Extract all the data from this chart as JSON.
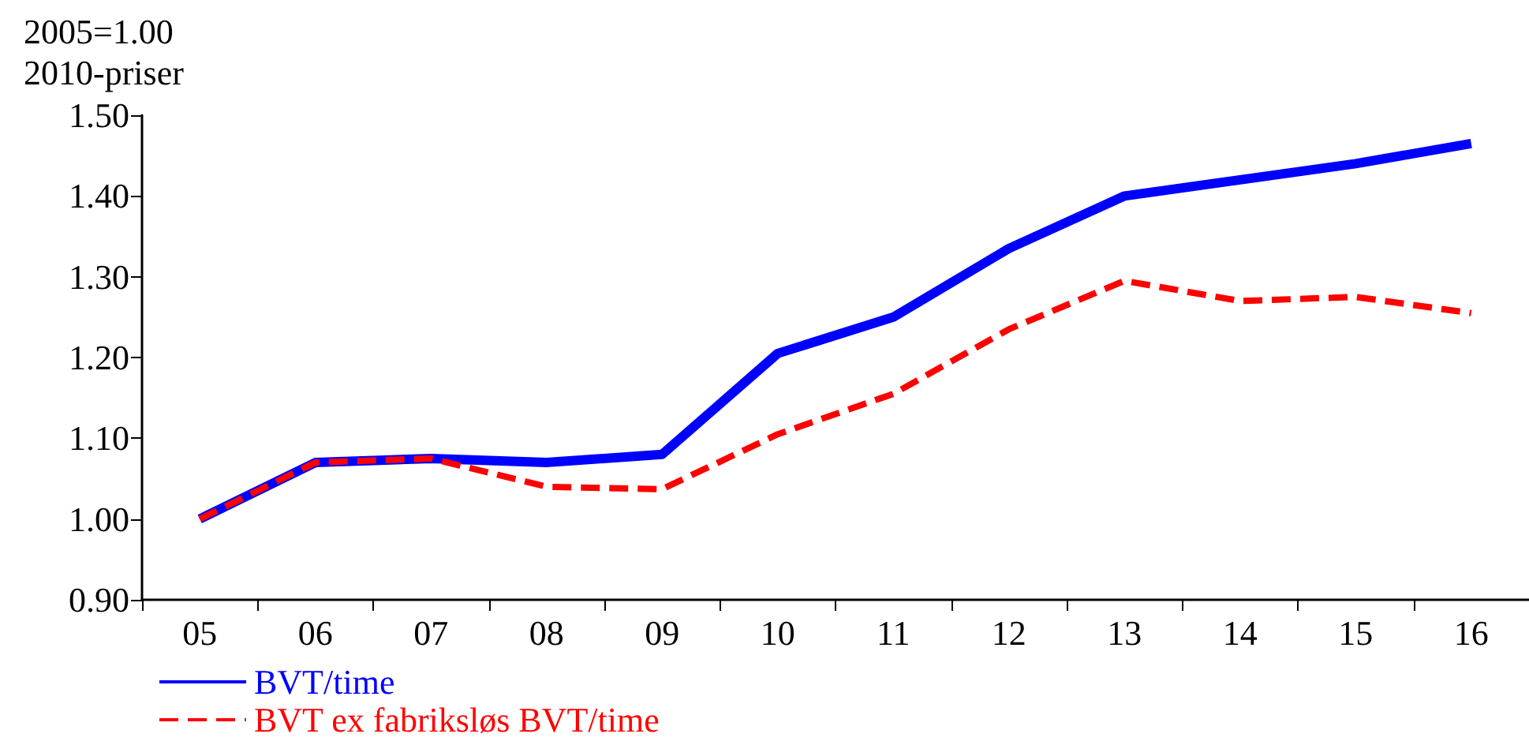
{
  "chart_data": {
    "type": "line",
    "title": "2005=1.00",
    "subtitle": "2010-priser",
    "categories": [
      "05",
      "06",
      "07",
      "08",
      "09",
      "10",
      "11",
      "12",
      "13",
      "14",
      "15",
      "16"
    ],
    "series": [
      {
        "name": "BVT/time",
        "color": "#0000ff",
        "line_style": "solid",
        "values": [
          1.0,
          1.07,
          1.075,
          1.07,
          1.08,
          1.205,
          1.25,
          1.335,
          1.4,
          1.42,
          1.44,
          1.465
        ]
      },
      {
        "name": "BVT ex fabriksløs BVT/time",
        "color": "#ff0000",
        "line_style": "dashed",
        "values": [
          1.0,
          1.07,
          1.075,
          1.04,
          1.037,
          1.105,
          1.155,
          1.235,
          1.295,
          1.27,
          1.275,
          1.255
        ]
      }
    ],
    "ylim": [
      0.9,
      1.5
    ],
    "yticks": [
      {
        "value": 0.9,
        "label": "0.90"
      },
      {
        "value": 1.0,
        "label": "1.00"
      },
      {
        "value": 1.1,
        "label": "1.10"
      },
      {
        "value": 1.2,
        "label": "1.20"
      },
      {
        "value": 1.3,
        "label": "1.30"
      },
      {
        "value": 1.4,
        "label": "1.40"
      },
      {
        "value": 1.5,
        "label": "1.50"
      }
    ],
    "grid": false,
    "legend": "bottom left",
    "marker": "none"
  }
}
